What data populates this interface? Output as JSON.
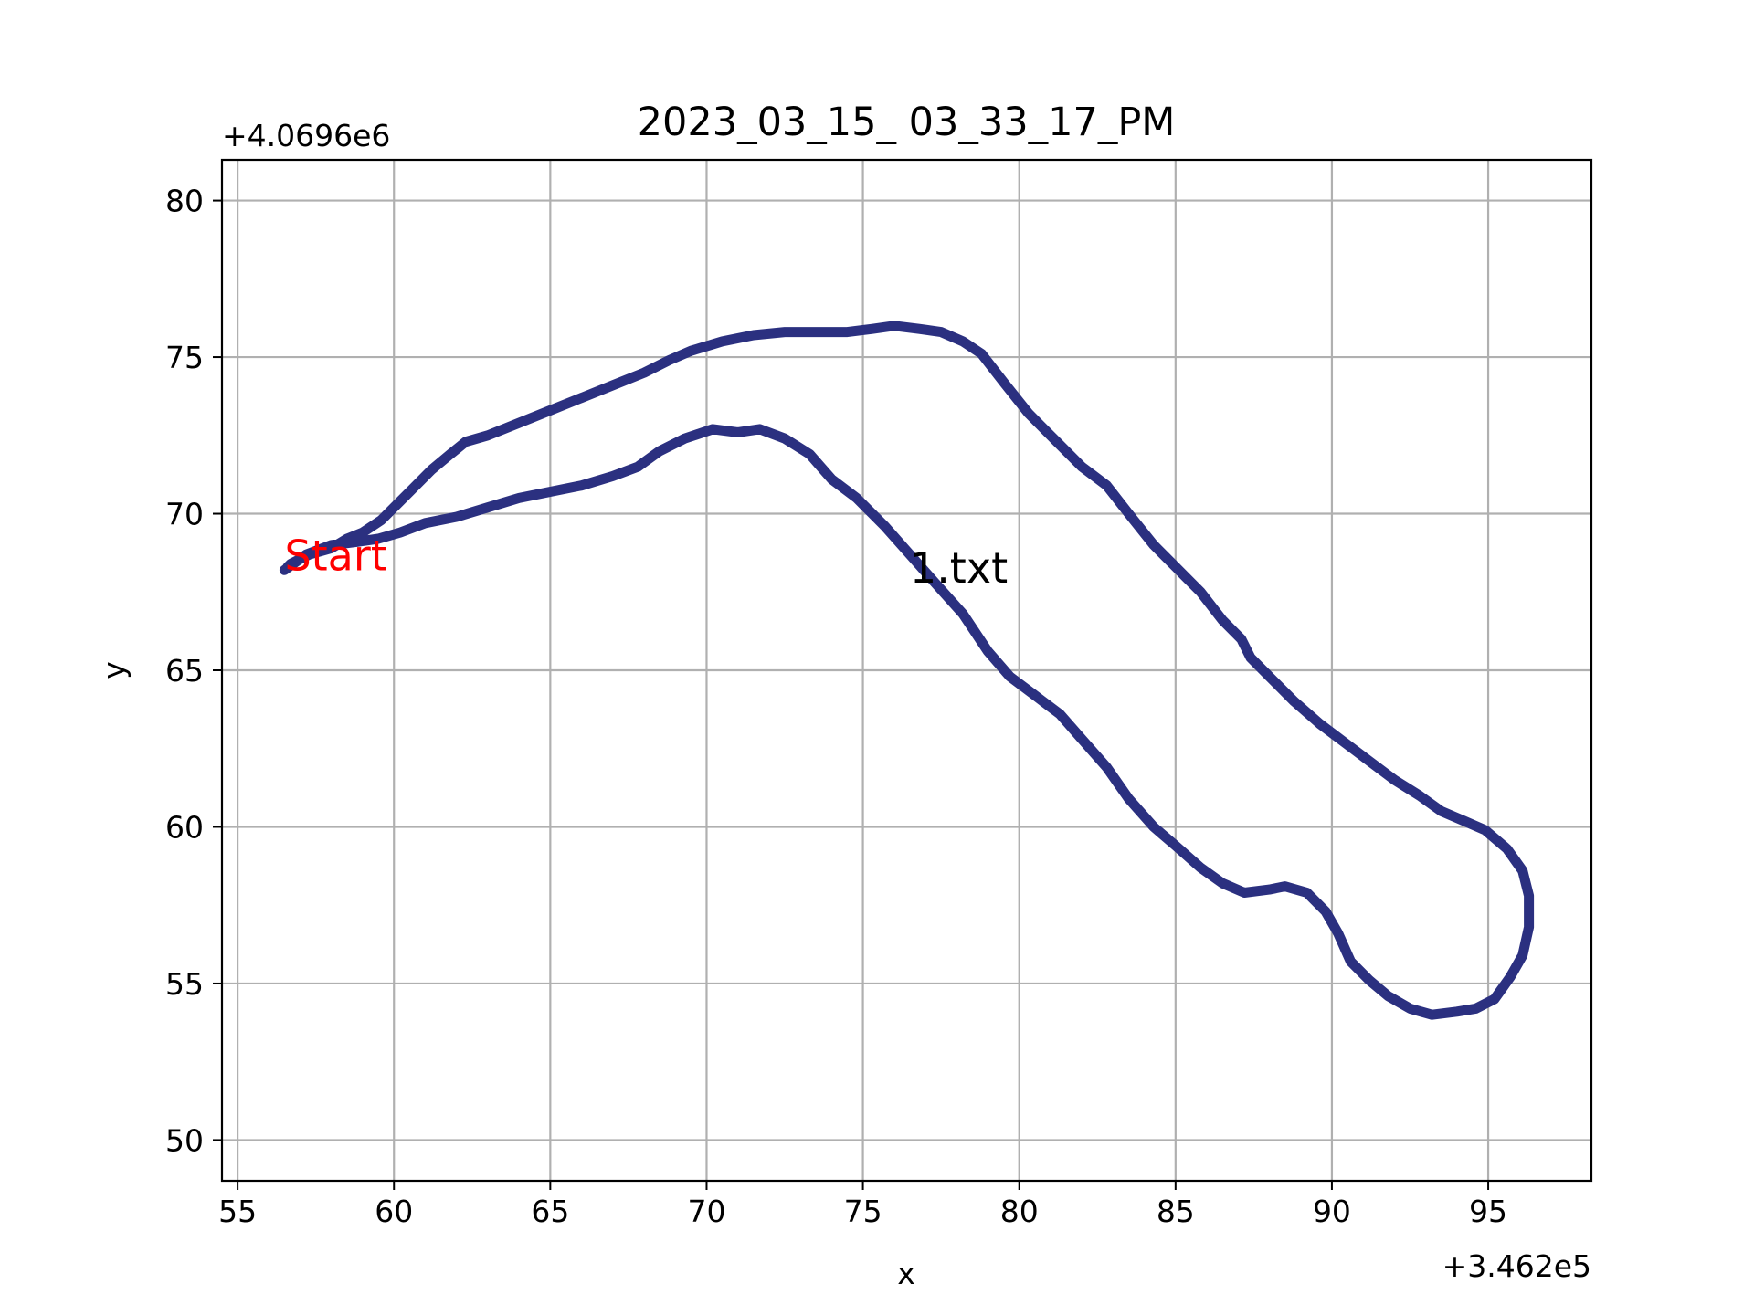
{
  "chart_data": {
    "type": "line",
    "title": "2023_03_15_ 03_33_17_PM",
    "xlabel": "x",
    "ylabel": "y",
    "x_offset_label": "+3.462e5",
    "y_offset_label": "+4.0696e6",
    "xlim": [
      54.5,
      98.3
    ],
    "ylim": [
      48.7,
      81.3
    ],
    "x_ticks": [
      55,
      60,
      65,
      70,
      75,
      80,
      85,
      90,
      95
    ],
    "y_ticks": [
      50,
      55,
      60,
      65,
      70,
      75,
      80
    ],
    "grid": true,
    "annotations": [
      {
        "text": "Start",
        "x": 56.5,
        "y": 68.2,
        "color": "#ff0000"
      },
      {
        "text": "1.txt",
        "x": 76.5,
        "y": 67.8,
        "color": "#000000"
      }
    ],
    "series": [
      {
        "color": "#2b3080",
        "points": [
          [
            56.5,
            68.2
          ],
          [
            57.2,
            68.7
          ],
          [
            58.0,
            69.0
          ],
          [
            58.8,
            69.1
          ],
          [
            59.5,
            69.2
          ],
          [
            60.2,
            69.4
          ],
          [
            61.0,
            69.7
          ],
          [
            62.0,
            69.9
          ],
          [
            63.0,
            70.2
          ],
          [
            64.0,
            70.5
          ],
          [
            65.0,
            70.7
          ],
          [
            66.0,
            70.9
          ],
          [
            67.0,
            71.2
          ],
          [
            67.8,
            71.5
          ],
          [
            68.5,
            72.0
          ],
          [
            69.3,
            72.4
          ],
          [
            70.2,
            72.7
          ],
          [
            71.0,
            72.6
          ],
          [
            71.7,
            72.7
          ],
          [
            72.5,
            72.4
          ],
          [
            73.3,
            71.9
          ],
          [
            74.0,
            71.1
          ],
          [
            74.8,
            70.5
          ],
          [
            75.7,
            69.6
          ],
          [
            76.5,
            68.7
          ],
          [
            77.3,
            67.8
          ],
          [
            78.2,
            66.8
          ],
          [
            79.0,
            65.6
          ],
          [
            79.7,
            64.8
          ],
          [
            80.5,
            64.2
          ],
          [
            81.3,
            63.6
          ],
          [
            82.0,
            62.8
          ],
          [
            82.8,
            61.9
          ],
          [
            83.5,
            60.9
          ],
          [
            84.3,
            60.0
          ],
          [
            85.0,
            59.4
          ],
          [
            85.8,
            58.7
          ],
          [
            86.5,
            58.2
          ],
          [
            87.2,
            57.9
          ],
          [
            88.0,
            58.0
          ],
          [
            88.5,
            58.1
          ],
          [
            89.2,
            57.9
          ],
          [
            89.8,
            57.3
          ],
          [
            90.2,
            56.6
          ],
          [
            90.6,
            55.7
          ],
          [
            91.2,
            55.1
          ],
          [
            91.8,
            54.6
          ],
          [
            92.5,
            54.2
          ],
          [
            93.2,
            54.0
          ],
          [
            94.0,
            54.1
          ],
          [
            94.6,
            54.2
          ],
          [
            95.2,
            54.5
          ],
          [
            95.7,
            55.2
          ],
          [
            96.1,
            55.9
          ],
          [
            96.3,
            56.8
          ],
          [
            96.3,
            57.8
          ],
          [
            96.1,
            58.6
          ],
          [
            95.6,
            59.3
          ],
          [
            94.9,
            59.9
          ],
          [
            94.2,
            60.2
          ],
          [
            93.5,
            60.5
          ],
          [
            92.8,
            61.0
          ],
          [
            92.0,
            61.5
          ],
          [
            91.2,
            62.1
          ],
          [
            90.4,
            62.7
          ],
          [
            89.6,
            63.3
          ],
          [
            88.8,
            64.0
          ],
          [
            88.0,
            64.8
          ],
          [
            87.4,
            65.4
          ],
          [
            87.1,
            66.0
          ],
          [
            86.5,
            66.6
          ],
          [
            85.8,
            67.5
          ],
          [
            85.0,
            68.3
          ],
          [
            84.3,
            69.0
          ],
          [
            83.5,
            70.0
          ],
          [
            82.8,
            70.9
          ],
          [
            82.0,
            71.5
          ],
          [
            81.2,
            72.3
          ],
          [
            80.3,
            73.2
          ],
          [
            79.5,
            74.2
          ],
          [
            78.8,
            75.1
          ],
          [
            78.2,
            75.5
          ],
          [
            77.5,
            75.8
          ],
          [
            76.8,
            75.9
          ],
          [
            76.0,
            76.0
          ],
          [
            75.3,
            75.9
          ],
          [
            74.5,
            75.8
          ],
          [
            73.5,
            75.8
          ],
          [
            72.5,
            75.8
          ],
          [
            71.5,
            75.7
          ],
          [
            70.5,
            75.5
          ],
          [
            69.5,
            75.2
          ],
          [
            68.8,
            74.9
          ],
          [
            68.0,
            74.5
          ],
          [
            67.0,
            74.1
          ],
          [
            66.0,
            73.7
          ],
          [
            65.0,
            73.3
          ],
          [
            64.0,
            72.9
          ],
          [
            63.0,
            72.5
          ],
          [
            62.3,
            72.3
          ],
          [
            61.8,
            71.9
          ],
          [
            61.2,
            71.4
          ],
          [
            60.6,
            70.8
          ],
          [
            60.0,
            70.2
          ],
          [
            59.6,
            69.8
          ],
          [
            59.0,
            69.4
          ],
          [
            58.5,
            69.2
          ],
          [
            58.0,
            68.9
          ],
          [
            57.3,
            68.7
          ],
          [
            56.7,
            68.4
          ],
          [
            56.6,
            68.3
          ]
        ]
      }
    ]
  }
}
